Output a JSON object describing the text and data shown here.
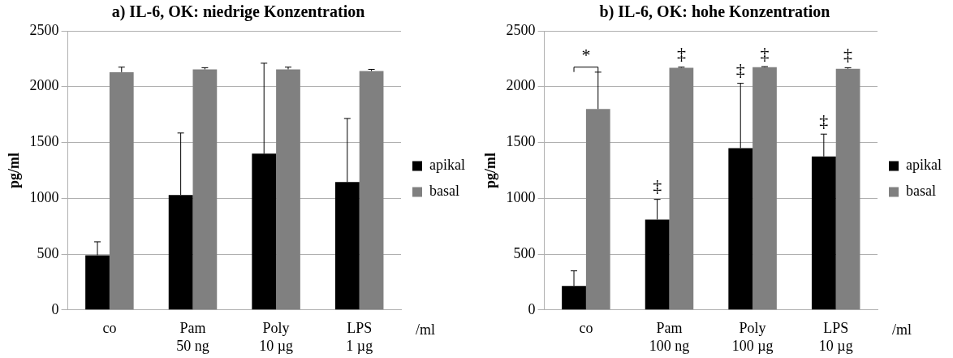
{
  "chart_data": [
    {
      "type": "bar",
      "title": "a) IL-6, OK: niedrige Konzentration",
      "ylabel": "pg/ml",
      "xlabel": "/ml",
      "categories": [
        "co",
        "Pam\n50 ng",
        "Poly\n10 µg",
        "LPS\n1 µg"
      ],
      "series": [
        {
          "name": "apikal",
          "color": "#000000",
          "values": [
            490,
            1030,
            1400,
            1145
          ],
          "errors": [
            [
              490,
              610
            ],
            [
              1030,
              1585
            ],
            [
              1400,
              2210
            ],
            [
              1145,
              1715
            ]
          ]
        },
        {
          "name": "basal",
          "color": "#808080",
          "values": [
            2130,
            2155,
            2155,
            2140
          ],
          "errors": [
            [
              2130,
              2175
            ],
            [
              2155,
              2170
            ],
            [
              2155,
              2175
            ],
            [
              2140,
              2155
            ]
          ]
        }
      ],
      "ylim": [
        0,
        2500
      ],
      "yticks": [
        0,
        500,
        1000,
        1500,
        2000,
        2500
      ],
      "grid": "y",
      "legend": "right"
    },
    {
      "type": "bar",
      "title": "b) IL-6, OK: hohe Konzentration",
      "ylabel": "pg/ml",
      "xlabel": "/ml",
      "categories": [
        "co",
        "Pam\n100 ng",
        "Poly\n100 µg",
        "LPS\n10 µg"
      ],
      "series": [
        {
          "name": "apikal",
          "color": "#000000",
          "values": [
            215,
            810,
            1450,
            1375
          ],
          "errors": [
            [
              215,
              350
            ],
            [
              810,
              990
            ],
            [
              1450,
              2030
            ],
            [
              1375,
              1575
            ]
          ]
        },
        {
          "name": "basal",
          "color": "#808080",
          "values": [
            1800,
            2170,
            2175,
            2160
          ],
          "errors": [
            [
              1800,
              2130
            ],
            [
              2170,
              2175
            ],
            [
              2175,
              2180
            ],
            [
              2160,
              2170
            ]
          ]
        }
      ],
      "ylim": [
        0,
        2500
      ],
      "yticks": [
        0,
        500,
        1000,
        1500,
        2000,
        2500
      ],
      "grid": "y",
      "legend": "right",
      "annotations": [
        "*",
        {
          "text": "‡",
          "x": "Pam\n100 ng",
          "y": 990
        },
        {
          "text": "‡",
          "x": "Pam\n100 ng",
          "y": 2175
        },
        {
          "text": "‡",
          "x": "Poly\n100 µg",
          "y": 2030
        },
        {
          "text": "‡",
          "x": "Poly\n100 µg",
          "y": 2180
        },
        {
          "text": "‡",
          "x": "LPS\n10 µg",
          "y": 1575
        },
        {
          "text": "‡",
          "x": "LPS\n10 µg",
          "y": 2170
        }
      ]
    }
  ]
}
